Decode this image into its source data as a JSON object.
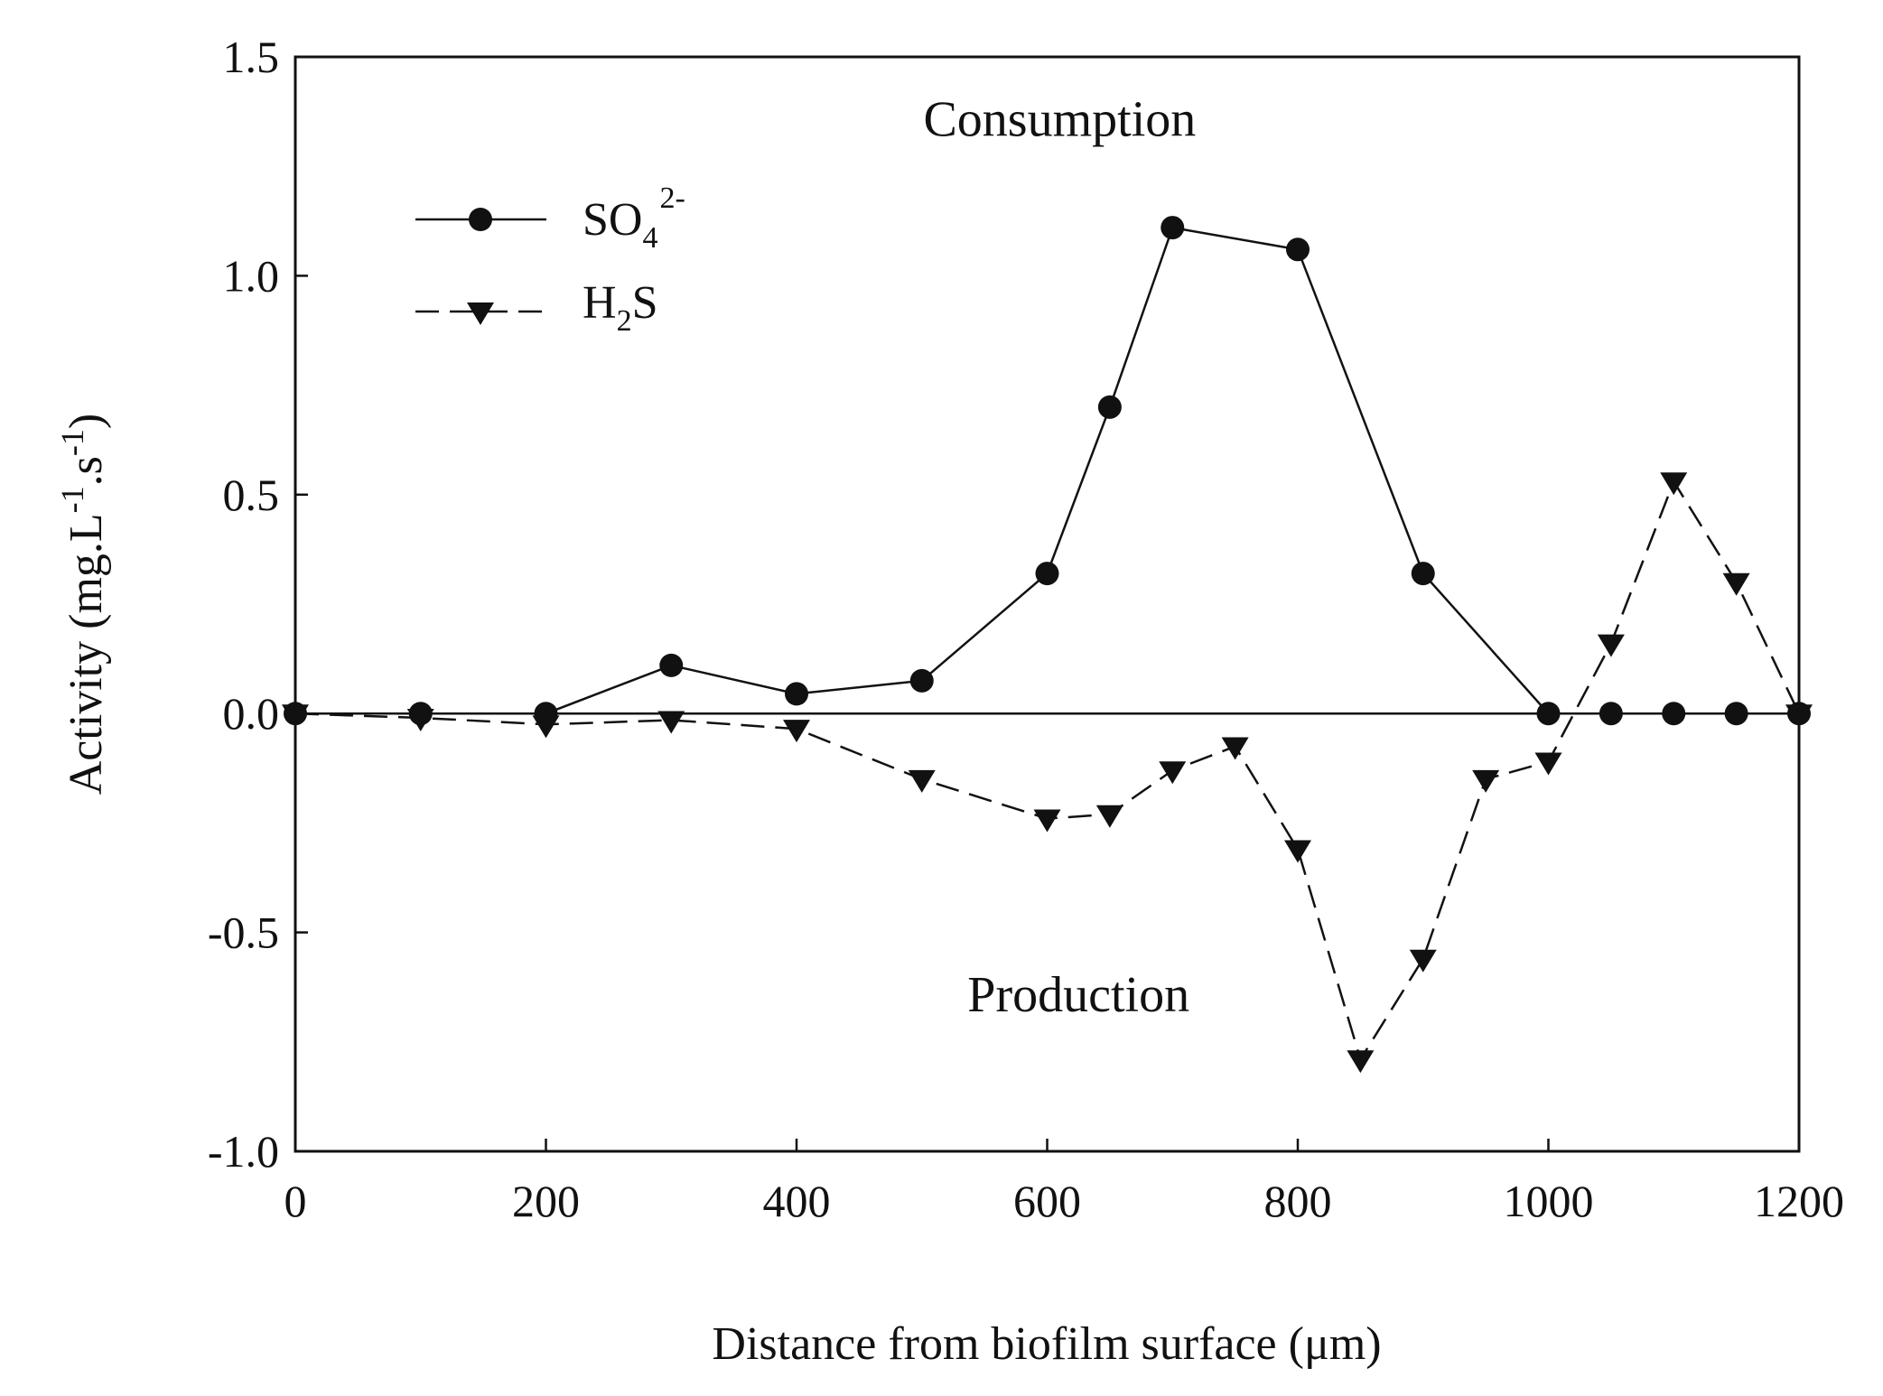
{
  "chart_data": {
    "type": "line",
    "xlabel": "Distance from biofilm surface (μm)",
    "ylabel": {
      "base": "Activity (mg.L",
      "sup1": "-1",
      "mid": ".s",
      "sup2": "-1",
      "end": ")"
    },
    "xlim": [
      0,
      1200
    ],
    "ylim": [
      -1.0,
      1.5
    ],
    "xticks": [
      0,
      200,
      400,
      600,
      800,
      1000,
      1200
    ],
    "xtick_labels": [
      "0",
      "200",
      "400",
      "600",
      "800",
      "1000",
      "1200"
    ],
    "yticks": [
      -1.0,
      -0.5,
      0.0,
      0.5,
      1.0,
      1.5
    ],
    "ytick_labels": [
      "-1.0",
      "-0.5",
      "0.0",
      "0.5",
      "1.0",
      "1.5"
    ],
    "grid": false,
    "zero_line": true,
    "legend_position": "top-left",
    "annotations": [
      {
        "text": "Consumption",
        "x": 610,
        "y": 1.32
      },
      {
        "text": "Production",
        "x": 625,
        "y": -0.68
      }
    ],
    "series": [
      {
        "name": "SO42-",
        "label": {
          "base": "SO",
          "sub": "4",
          "sup": "2-"
        },
        "marker": "circle",
        "line": "solid",
        "x": [
          0,
          100,
          200,
          300,
          400,
          500,
          600,
          650,
          700,
          800,
          900,
          1000,
          1050,
          1100,
          1150,
          1200
        ],
        "y": [
          0.0,
          0.0,
          0.0,
          0.11,
          0.045,
          0.075,
          0.32,
          0.7,
          1.11,
          1.06,
          0.32,
          0.0,
          0.0,
          0.0,
          0.0,
          0.0
        ]
      },
      {
        "name": "H2S",
        "label": {
          "base": "H",
          "sub": "2",
          "rest": "S"
        },
        "marker": "triangle-down",
        "line": "dashed",
        "x": [
          0,
          100,
          200,
          300,
          400,
          500,
          600,
          650,
          700,
          750,
          800,
          850,
          900,
          950,
          1000,
          1050,
          1100,
          1150,
          1200
        ],
        "y": [
          0.0,
          -0.01,
          -0.025,
          -0.015,
          -0.035,
          -0.15,
          -0.24,
          -0.23,
          -0.13,
          -0.075,
          -0.31,
          -0.79,
          -0.56,
          -0.15,
          -0.11,
          0.16,
          0.53,
          0.3,
          0.0
        ]
      }
    ]
  }
}
